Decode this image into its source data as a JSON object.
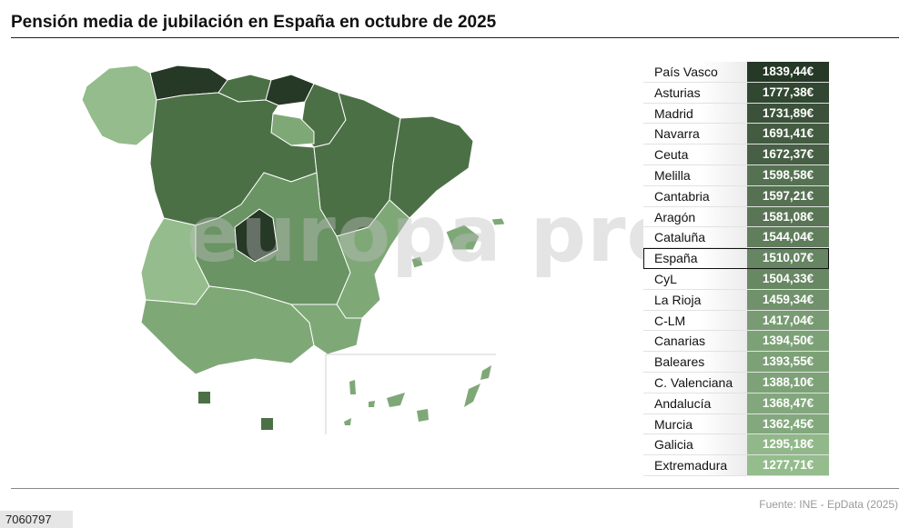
{
  "title": "Pensión media de jubilación en España en octubre de 2025",
  "source": "Fuente: INE - EpData (2025)",
  "photo_id": "7060797",
  "watermark": "europa press",
  "colors": {
    "darkest": "#263826",
    "dark": "#4c7046",
    "medium": "#6a9464",
    "light": "#94bc8c",
    "mid_light": "#7fa877"
  },
  "chart_data": {
    "type": "table",
    "title": "Pensión media de jubilación en España en octubre de 2025",
    "unit": "€",
    "rows": [
      {
        "region": "País Vasco",
        "value": "1839,44€",
        "num": 1839.44
      },
      {
        "region": "Asturias",
        "value": "1777,38€",
        "num": 1777.38
      },
      {
        "region": "Madrid",
        "value": "1731,89€",
        "num": 1731.89
      },
      {
        "region": "Navarra",
        "value": "1691,41€",
        "num": 1691.41
      },
      {
        "region": "Ceuta",
        "value": "1672,37€",
        "num": 1672.37
      },
      {
        "region": "Melilla",
        "value": "1598,58€",
        "num": 1598.58
      },
      {
        "region": "Cantabria",
        "value": "1597,21€",
        "num": 1597.21
      },
      {
        "region": "Aragón",
        "value": "1581,08€",
        "num": 1581.08
      },
      {
        "region": "Cataluña",
        "value": "1544,04€",
        "num": 1544.04
      },
      {
        "region": "España",
        "value": "1510,07€",
        "num": 1510.07,
        "highlight": true
      },
      {
        "region": "CyL",
        "value": "1504,33€",
        "num": 1504.33
      },
      {
        "region": "La Rioja",
        "value": "1459,34€",
        "num": 1459.34
      },
      {
        "region": "C-LM",
        "value": "1417,04€",
        "num": 1417.04
      },
      {
        "region": "Canarias",
        "value": "1394,50€",
        "num": 1394.5
      },
      {
        "region": "Baleares",
        "value": "1393,55€",
        "num": 1393.55
      },
      {
        "region": "C. Valenciana",
        "value": "1388,10€",
        "num": 1388.1
      },
      {
        "region": "Andalucía",
        "value": "1368,47€",
        "num": 1368.47
      },
      {
        "region": "Murcia",
        "value": "1362,45€",
        "num": 1362.45
      },
      {
        "region": "Galicia",
        "value": "1295,18€",
        "num": 1295.18
      },
      {
        "region": "Extremadura",
        "value": "1277,71€",
        "num": 1277.71
      }
    ]
  }
}
